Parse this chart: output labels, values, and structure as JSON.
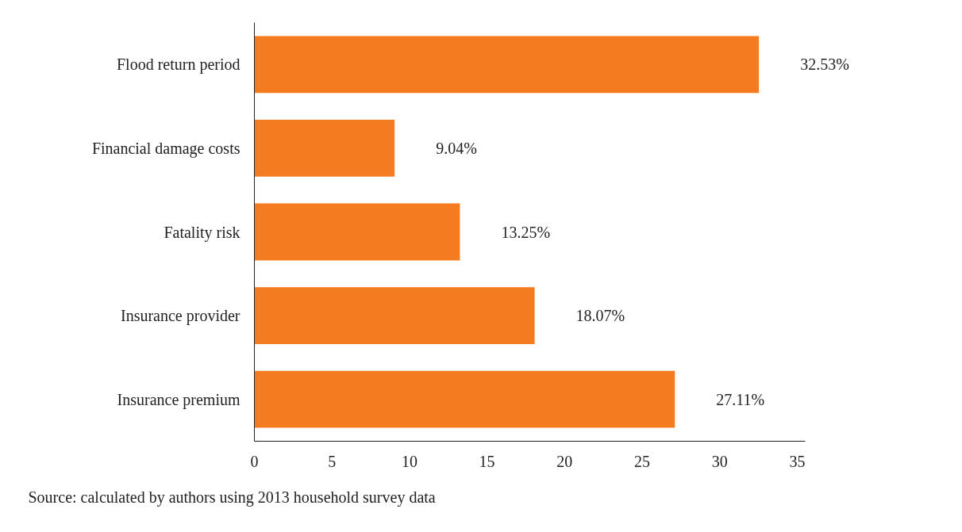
{
  "chart_data": {
    "type": "bar",
    "orientation": "horizontal",
    "categories": [
      "Flood return period",
      "Financial damage costs",
      "Fatality risk",
      "Insurance provider",
      "Insurance premium"
    ],
    "values": [
      32.53,
      9.04,
      13.25,
      18.07,
      27.11
    ],
    "value_labels": [
      "32.53%",
      "9.04%",
      "13.25%",
      "18.07%",
      "27.11%"
    ],
    "color": "#f47b20",
    "xlim": [
      0,
      35.5
    ],
    "xticks": [
      0,
      5,
      10,
      15,
      20,
      25,
      30,
      35
    ],
    "grid": false,
    "annotations": [
      "Source: calculated by authors using 2013 household survey data"
    ]
  }
}
